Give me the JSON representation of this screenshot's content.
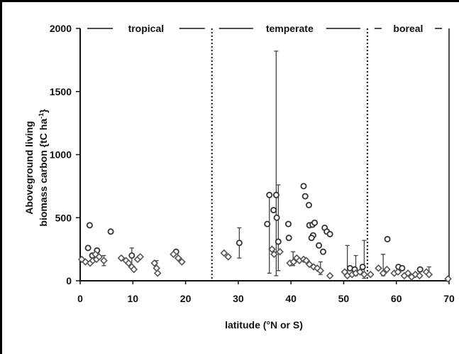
{
  "chart_data": {
    "type": "scatter",
    "xlabel": "latitude (°N or S)",
    "ylabel_line1": "Aboveground living",
    "ylabel_line2": "biomass carbon {tC ha",
    "ylabel_sup": "-1",
    "ylabel_close": "}",
    "xlim": [
      0,
      70
    ],
    "ylim": [
      0,
      2000
    ],
    "xticks": [
      0,
      10,
      20,
      30,
      40,
      50,
      60,
      70
    ],
    "yticks": [
      0,
      500,
      1000,
      1500,
      2000
    ],
    "grid": false,
    "zones": [
      {
        "label": "tropical",
        "from": 0,
        "to": 25
      },
      {
        "label": "temperate",
        "from": 25,
        "to": 54.5
      },
      {
        "label": "boreal",
        "from": 54.5,
        "to": 70
      }
    ],
    "zone_boundaries": [
      25,
      54.5
    ],
    "series": [
      {
        "marker": "open-circle",
        "points": [
          [
            1.8,
            440
          ],
          [
            1.5,
            260
          ],
          [
            2.3,
            200
          ],
          [
            3.2,
            240
          ],
          [
            5.8,
            390
          ],
          [
            9.8,
            200
          ],
          [
            18.2,
            230
          ],
          [
            30.2,
            300
          ],
          [
            35.5,
            450
          ],
          [
            35.9,
            680
          ],
          [
            36.7,
            560
          ],
          [
            37.2,
            680
          ],
          [
            37.3,
            500
          ],
          [
            37.6,
            310
          ],
          [
            39.5,
            450
          ],
          [
            39.6,
            340
          ],
          [
            42.4,
            750
          ],
          [
            42.7,
            670
          ],
          [
            43.4,
            600
          ],
          [
            43.5,
            440
          ],
          [
            44.1,
            445
          ],
          [
            44.5,
            460
          ],
          [
            44.2,
            360
          ],
          [
            43.9,
            340
          ],
          [
            46.4,
            420
          ],
          [
            46.8,
            390
          ],
          [
            47.4,
            370
          ],
          [
            45.3,
            280
          ],
          [
            46.1,
            230
          ],
          [
            58.3,
            330
          ],
          [
            51.2,
            100
          ],
          [
            52.1,
            90
          ],
          [
            53.6,
            110
          ],
          [
            60.4,
            110
          ],
          [
            61.1,
            100
          ],
          [
            64.5,
            90
          ]
        ]
      },
      {
        "marker": "open-diamond",
        "points": [
          [
            0.3,
            170
          ],
          [
            1.0,
            150
          ],
          [
            1.9,
            140
          ],
          [
            2.4,
            160
          ],
          [
            3.1,
            170
          ],
          [
            3.6,
            190
          ],
          [
            2.9,
            210
          ],
          [
            4.5,
            160
          ],
          [
            7.8,
            180
          ],
          [
            8.7,
            160
          ],
          [
            9.2,
            140
          ],
          [
            9.8,
            110
          ],
          [
            10.2,
            90
          ],
          [
            10.9,
            170
          ],
          [
            11.4,
            190
          ],
          [
            14.1,
            140
          ],
          [
            14.5,
            100
          ],
          [
            14.7,
            60
          ],
          [
            17.7,
            210
          ],
          [
            18.6,
            180
          ],
          [
            19.3,
            150
          ],
          [
            27.3,
            220
          ],
          [
            28.1,
            190
          ],
          [
            36.4,
            250
          ],
          [
            36.8,
            210
          ],
          [
            37.9,
            230
          ],
          [
            39.8,
            140
          ],
          [
            40.5,
            150
          ],
          [
            41.1,
            180
          ],
          [
            41.6,
            160
          ],
          [
            42.4,
            170
          ],
          [
            42.9,
            160
          ],
          [
            43.5,
            130
          ],
          [
            44.3,
            110
          ],
          [
            45.0,
            100
          ],
          [
            45.6,
            80
          ],
          [
            47.4,
            40
          ],
          [
            50.2,
            70
          ],
          [
            50.7,
            40
          ],
          [
            51.6,
            50
          ],
          [
            52.3,
            60
          ],
          [
            53.1,
            70
          ],
          [
            53.9,
            50
          ],
          [
            55.1,
            50
          ],
          [
            56.6,
            100
          ],
          [
            57.5,
            60
          ],
          [
            58.2,
            90
          ],
          [
            59.6,
            60
          ],
          [
            60.3,
            70
          ],
          [
            61.5,
            40
          ],
          [
            62.2,
            60
          ],
          [
            62.9,
            30
          ],
          [
            63.6,
            50
          ],
          [
            64.4,
            40
          ],
          [
            65.7,
            70
          ],
          [
            66.2,
            50
          ],
          [
            69.8,
            15
          ]
        ]
      }
    ],
    "error_bars": [
      {
        "x": 4.5,
        "low": 120,
        "high": 200
      },
      {
        "x": 9.8,
        "low": 100,
        "high": 260
      },
      {
        "x": 14.5,
        "low": 60,
        "high": 160
      },
      {
        "x": 30.2,
        "low": 180,
        "high": 420
      },
      {
        "x": 35.9,
        "low": 60,
        "high": 690
      },
      {
        "x": 37.2,
        "low": 40,
        "high": 1820
      },
      {
        "x": 37.6,
        "low": 80,
        "high": 760
      },
      {
        "x": 40.4,
        "low": 120,
        "high": 230
      },
      {
        "x": 45.6,
        "low": 50,
        "high": 150
      },
      {
        "x": 50.7,
        "low": 30,
        "high": 280
      },
      {
        "x": 52.3,
        "low": 40,
        "high": 200
      },
      {
        "x": 53.9,
        "low": 20,
        "high": 320
      },
      {
        "x": 57.5,
        "low": 40,
        "high": 210
      },
      {
        "x": 66.2,
        "low": 40,
        "high": 110
      }
    ]
  }
}
